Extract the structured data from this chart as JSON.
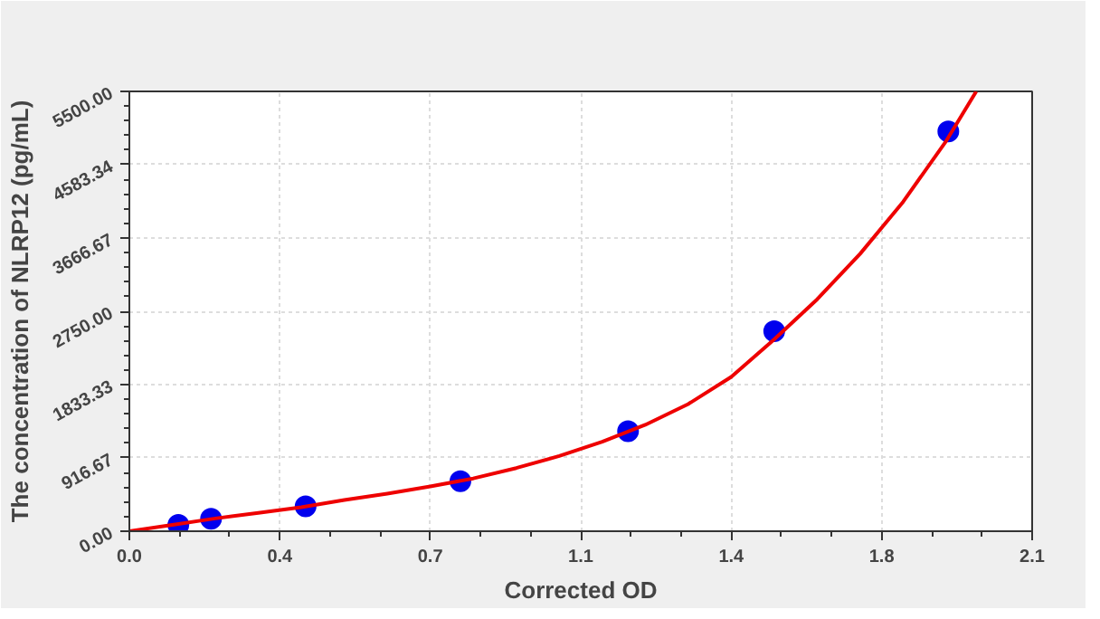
{
  "chart_data": {
    "type": "scatter",
    "xlabel": "Corrected OD",
    "ylabel": "The concentration of NLRP12 (pg/mL)",
    "series": [
      {
        "marker": "circle",
        "color": "#0000ee",
        "x": [
          0.114,
          0.19,
          0.41,
          0.77,
          1.16,
          1.5,
          1.905
        ],
        "values": [
          78,
          156,
          312,
          625,
          1250,
          2500,
          5000
        ]
      },
      {
        "type": "line",
        "color": "#ee0000",
        "x": [
          0,
          0.1,
          0.2,
          0.3,
          0.4,
          0.5,
          0.6,
          0.7,
          0.8,
          0.9,
          1.0,
          1.1,
          1.2,
          1.3,
          1.4,
          1.5,
          1.6,
          1.7,
          1.8,
          1.9,
          1.97
        ],
        "values": [
          0,
          80,
          160,
          230,
          300,
          390,
          470,
          560,
          660,
          790,
          940,
          1120,
          1330,
          1590,
          1930,
          2400,
          2900,
          3470,
          4120,
          4880,
          5500
        ]
      }
    ],
    "grid": true,
    "xlim": [
      0,
      2.1
    ],
    "xticks": [
      {
        "value": 0,
        "label": "0.0"
      },
      {
        "value": 0.35,
        "label": "0.4"
      },
      0.7,
      {
        "value": 1.05,
        "label": "1.1"
      },
      1.4,
      {
        "value": 1.75,
        "label": "1.8"
      },
      2.1
    ],
    "ylim": [
      0,
      5500
    ],
    "yticks": [
      {
        "value": 0,
        "label": "0.00"
      },
      {
        "value": 916.67,
        "label": "916.67"
      },
      {
        "value": 1833.33,
        "label": "1833.33"
      },
      {
        "value": 2750,
        "label": "2750.00"
      },
      {
        "value": 3666.67,
        "label": "3666.67"
      },
      {
        "value": 4583.34,
        "label": "4583.34"
      },
      {
        "value": 5500,
        "label": "5500.00"
      }
    ]
  }
}
